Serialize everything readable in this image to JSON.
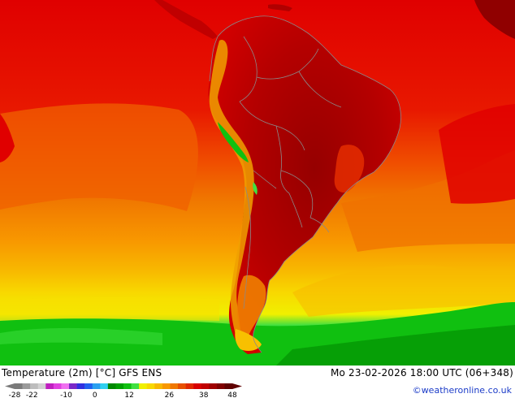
{
  "map": {
    "region": "South America",
    "variable": "Temperature (2m) [°C]"
  },
  "header": {
    "title": "Temperature (2m) [°C] GFS ENS",
    "timestamp": "Mo 23-02-2026 18:00 UTC (06+348)",
    "credit": "©weatheronline.co.uk"
  },
  "legend": {
    "tick_labels": [
      "-28",
      "-22",
      "-10",
      "0",
      "12",
      "26",
      "38",
      "48"
    ],
    "tick_values": [
      -28,
      -22,
      -10,
      0,
      12,
      26,
      38,
      48
    ],
    "colors": [
      "#7a7a7a",
      "#9a9a9a",
      "#bdbdbd",
      "#d2d2d2",
      "#c020c0",
      "#e040e0",
      "#f070f0",
      "#7a28c8",
      "#3030e0",
      "#2060f0",
      "#2aa0f0",
      "#30d0f0",
      "#008800",
      "#00a000",
      "#10c010",
      "#40e040",
      "#f0f000",
      "#f8d800",
      "#f8b800",
      "#f89800",
      "#f07800",
      "#e85000",
      "#e02800",
      "#d80000",
      "#c00000",
      "#a00000",
      "#800000",
      "#600000"
    ]
  },
  "colors": {
    "ocean_hot": "#e10000",
    "land_hot": "#a00000",
    "band_orange": "#f07800",
    "band_yellow": "#f0e000",
    "band_green": "#10c010",
    "country_border": "#8a8a8a"
  }
}
